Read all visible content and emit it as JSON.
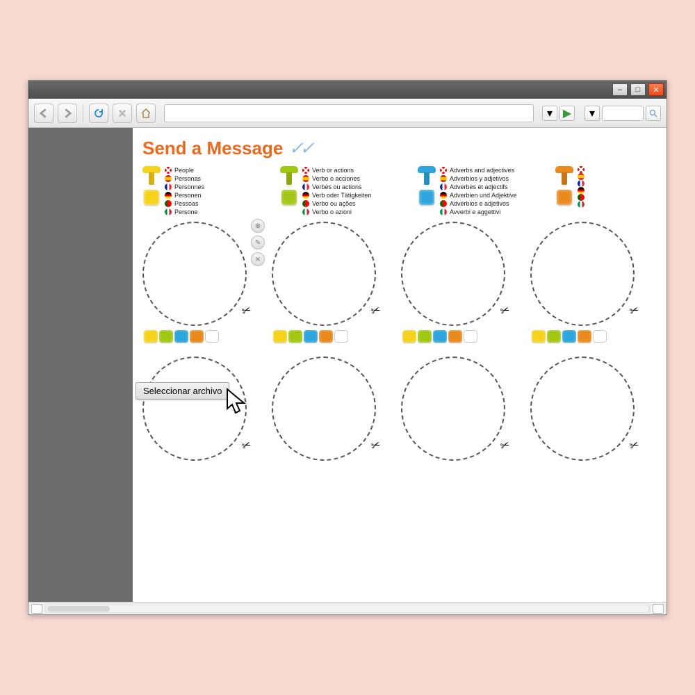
{
  "page": {
    "title": "Send a Message",
    "checkmark_glyph": "✓✓"
  },
  "file_button": {
    "label": "Seleccionar archivo"
  },
  "colors": {
    "yellow": "#f6d21b",
    "green": "#a3c814",
    "blue": "#2ea6dd",
    "orange": "#e98a1e",
    "title": "#e96a1e"
  },
  "categories": [
    {
      "color_key": "yellow",
      "langs": [
        {
          "flag": "uk",
          "text": "People"
        },
        {
          "flag": "es",
          "text": "Personas"
        },
        {
          "flag": "fr",
          "text": "Personnes"
        },
        {
          "flag": "de",
          "text": "Personen"
        },
        {
          "flag": "pt",
          "text": "Pessoas"
        },
        {
          "flag": "it",
          "text": "Persone"
        }
      ]
    },
    {
      "color_key": "green",
      "langs": [
        {
          "flag": "uk",
          "text": "Verb or actions"
        },
        {
          "flag": "es",
          "text": "Verbo o acciones"
        },
        {
          "flag": "fr",
          "text": "Verbes ou actions"
        },
        {
          "flag": "de",
          "text": "Verb oder Tätigkeiten"
        },
        {
          "flag": "pt",
          "text": "Verbo ou ações"
        },
        {
          "flag": "it",
          "text": "Verbo o azioni"
        }
      ]
    },
    {
      "color_key": "blue",
      "langs": [
        {
          "flag": "uk",
          "text": "Adverbs and adjectives"
        },
        {
          "flag": "es",
          "text": "Adverbios y adjetivos"
        },
        {
          "flag": "fr",
          "text": "Adverbes et adjectifs"
        },
        {
          "flag": "de",
          "text": "Adverbien und Adjektive"
        },
        {
          "flag": "pt",
          "text": "Advérbios e adjetivos"
        },
        {
          "flag": "it",
          "text": "Avverbi e aggettivi"
        }
      ]
    },
    {
      "color_key": "orange",
      "langs": []
    }
  ],
  "flags": {
    "uk": {
      "bg": "#0a3d91",
      "overlay": "linear-gradient(45deg,transparent 42%,#fff 42%,#fff 58%,transparent 58%),linear-gradient(-45deg,transparent 42%,#fff 42%,#fff 58%,transparent 58%),linear-gradient(#d00,#d00)"
    },
    "es": {
      "bg": "#d8a900",
      "overlay": "linear-gradient(#c60b1e 0 25%,#ffc400 25% 75%,#c60b1e 75%)"
    },
    "fr": {
      "bg": "#fff",
      "overlay": "linear-gradient(90deg,#002395 0 33%,#fff 33% 66%,#ed2939 66%)"
    },
    "de": {
      "bg": "#000",
      "overlay": "linear-gradient(#000 0 33%,#dd0000 33% 66%,#ffce00 66%)"
    },
    "pt": {
      "bg": "#006600",
      "overlay": "linear-gradient(90deg,#006600 0 40%,#ff0000 40%)"
    },
    "it": {
      "bg": "#fff",
      "overlay": "linear-gradient(90deg,#009246 0 33%,#fff 33% 66%,#ce2b37 66%)"
    }
  },
  "color_bar_sequence": [
    "yellow",
    "green",
    "blue",
    "orange",
    "empty"
  ],
  "slots": {
    "row1_has_colorbar": true,
    "row2_has_colorbar": false
  }
}
